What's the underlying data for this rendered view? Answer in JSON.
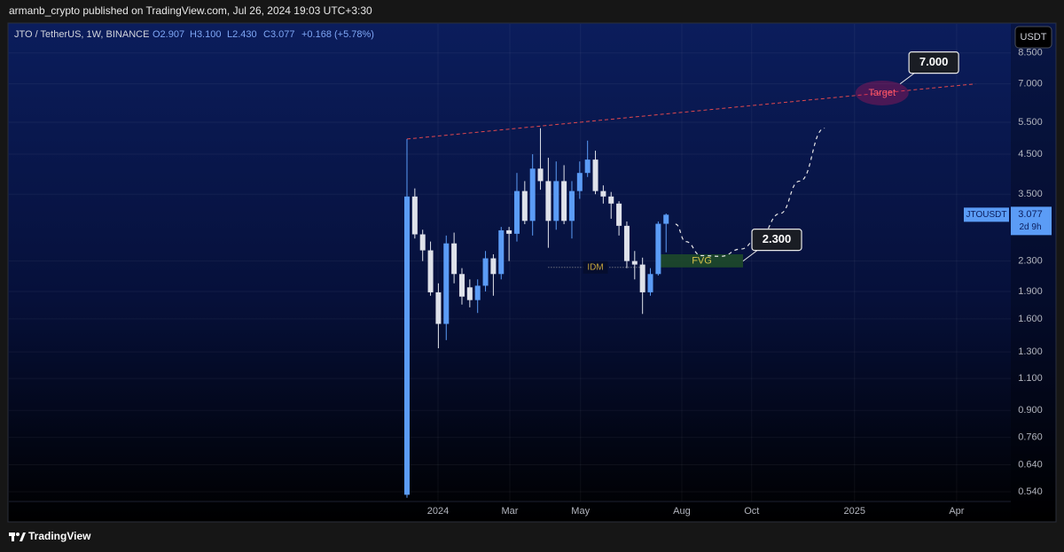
{
  "header": {
    "publisher": "armanb_crypto published on TradingView.com, Jul 26, 2024 19:03 UTC+3:30"
  },
  "footer": {
    "brand": "TradingView"
  },
  "chart_data": {
    "type": "candlestick",
    "legend": {
      "symbol": "JTO / TetherUS, 1W, BINANCE",
      "open": "O2.907",
      "high": "H3.100",
      "low": "L2.430",
      "close": "C3.077",
      "change": "+0.168 (+5.78%)"
    },
    "open": [
      0.53,
      3.45,
      2.72,
      2.46,
      1.89,
      1.55,
      2.57,
      2.12,
      1.95,
      1.8,
      1.97,
      2.34,
      2.12,
      2.79,
      2.73,
      3.57,
      2.96,
      4.11,
      3.8,
      2.96,
      3.8,
      2.96,
      3.57,
      4.0,
      4.35,
      3.57,
      3.45,
      3.3,
      2.87,
      2.3,
      2.25,
      1.89,
      2.12,
      2.907
    ],
    "high": [
      4.95,
      3.63,
      2.8,
      2.6,
      2.0,
      2.7,
      2.75,
      2.2,
      2.05,
      2.05,
      2.45,
      2.4,
      2.85,
      2.85,
      4.0,
      3.8,
      4.5,
      5.3,
      4.4,
      4.3,
      4.2,
      3.8,
      4.3,
      4.9,
      4.6,
      3.7,
      3.55,
      3.35,
      2.95,
      2.45,
      2.35,
      2.2,
      2.95,
      3.1
    ],
    "low": [
      0.52,
      2.65,
      2.3,
      1.85,
      1.33,
      1.4,
      2.0,
      1.75,
      1.72,
      1.66,
      1.9,
      1.85,
      2.05,
      2.3,
      2.6,
      2.9,
      2.7,
      3.6,
      2.5,
      2.8,
      2.9,
      2.65,
      3.4,
      3.9,
      3.5,
      3.3,
      3.0,
      2.7,
      2.2,
      2.05,
      1.65,
      1.85,
      2.1,
      2.43
    ],
    "close": [
      3.45,
      2.72,
      2.46,
      1.89,
      1.55,
      2.57,
      2.12,
      1.84,
      1.8,
      1.97,
      2.34,
      2.12,
      2.79,
      2.73,
      3.57,
      2.96,
      4.11,
      3.8,
      2.96,
      3.8,
      2.96,
      3.57,
      4.0,
      4.35,
      3.57,
      3.45,
      3.3,
      2.87,
      2.3,
      2.25,
      1.89,
      2.12,
      2.907,
      3.077
    ],
    "up_color": "#5b9cf6",
    "down_color": "#dfe2ea",
    "log_scale": true,
    "grid": true,
    "ylim": [
      0.508,
      10.2
    ],
    "yticks": [
      {
        "value": 0.54,
        "label": "0.540"
      },
      {
        "value": 0.64,
        "label": "0.640"
      },
      {
        "value": 0.76,
        "label": "0.760"
      },
      {
        "value": 0.9,
        "label": "0.900"
      },
      {
        "value": 1.1,
        "label": "1.100"
      },
      {
        "value": 1.3,
        "label": "1.300"
      },
      {
        "value": 1.6,
        "label": "1.600"
      },
      {
        "value": 1.9,
        "label": "1.900"
      },
      {
        "value": 2.3,
        "label": "2.300"
      },
      {
        "value": 3.5,
        "label": "3.500"
      },
      {
        "value": 4.5,
        "label": "4.500"
      },
      {
        "value": 5.5,
        "label": "5.500"
      },
      {
        "value": 7,
        "label": "7.000"
      },
      {
        "value": 8.5,
        "label": "8.500"
      }
    ],
    "xlim": [
      -50.7,
      76.9
    ],
    "xticks": [
      {
        "value": 3.95,
        "label": "2024"
      },
      {
        "value": 13.1,
        "label": "Mar"
      },
      {
        "value": 22.1,
        "label": "May"
      },
      {
        "value": 35.0,
        "label": "Aug"
      },
      {
        "value": 43.9,
        "label": "Oct"
      },
      {
        "value": 57.0,
        "label": "2025"
      },
      {
        "value": 70.0,
        "label": "Apr"
      }
    ],
    "symbol_tag": "JTOUSDT",
    "countdown": "2d 9h",
    "currency": "USDT",
    "annotations": {
      "trendline": {
        "color": "#e0484e",
        "x": [
          0,
          72.4
        ],
        "y": [
          4.95,
          7.0
        ]
      },
      "target": {
        "label": "Target",
        "x": 60.5,
        "value": 6.61
      },
      "callouts": [
        {
          "label": "7.000",
          "x": 62.8,
          "value": 7.0
        },
        {
          "label": "2.300",
          "x": 42.8,
          "value": 2.3
        }
      ],
      "fvg": {
        "label": "FVG",
        "x": [
          32.3,
          42.8
        ],
        "top": 2.4,
        "bottom": 2.21,
        "color": "#1e4a2a"
      },
      "idm": {
        "label": "IDM",
        "x": [
          18,
          30
        ],
        "value": 2.21
      },
      "projection": {
        "x": [
          34.2,
          35.5,
          37.5,
          40,
          42.5,
          45,
          47.5,
          50,
          53.2
        ],
        "y": [
          2.9,
          2.6,
          2.38,
          2.37,
          2.48,
          2.7,
          3.1,
          3.8,
          5.3
        ]
      }
    }
  }
}
